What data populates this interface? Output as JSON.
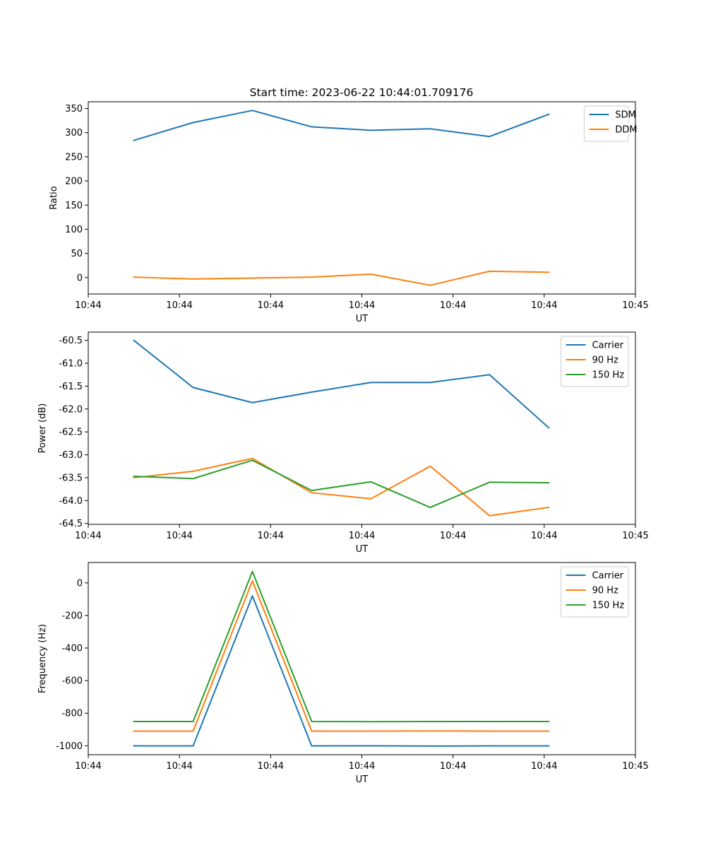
{
  "figure": {
    "title": "Start time: 2023-06-22 10:44:01.709176"
  },
  "colors": {
    "blue": "#1f77b4",
    "orange": "#ff7f0e",
    "green": "#2ca02c"
  },
  "chart_data": [
    {
      "type": "line",
      "title": "Start time: 2023-06-22 10:44:01.709176",
      "xlabel": "UT",
      "ylabel": "Ratio",
      "x": [
        0.5,
        1.15,
        1.8,
        2.45,
        3.1,
        3.75,
        4.4,
        5.05
      ],
      "xlim": [
        0,
        6
      ],
      "xticks": [
        0.0,
        1.0,
        2.0,
        3.0,
        4.0,
        5.0,
        6.0
      ],
      "xtick_labels": [
        "10:44",
        "10:44",
        "10:44",
        "10:44",
        "10:44",
        "10:44",
        "10:45"
      ],
      "ylim": [
        -34,
        364
      ],
      "yticks": [
        0,
        50,
        100,
        150,
        200,
        250,
        300,
        350
      ],
      "ytick_labels": [
        "0",
        "50",
        "100",
        "150",
        "200",
        "250",
        "300",
        "350"
      ],
      "legend": "top-right",
      "series": [
        {
          "name": "SDM",
          "color": "#1f77b4",
          "values": [
            284,
            321,
            346,
            312,
            305,
            308,
            292,
            338
          ]
        },
        {
          "name": "DDM",
          "color": "#ff7f0e",
          "values": [
            1,
            -3,
            -1,
            1,
            7,
            -16,
            13,
            11
          ]
        }
      ]
    },
    {
      "type": "line",
      "xlabel": "UT",
      "ylabel": "Power (dB)",
      "x": [
        0.5,
        1.15,
        1.8,
        2.45,
        3.1,
        3.75,
        4.4,
        5.05
      ],
      "xlim": [
        0,
        6
      ],
      "xticks": [
        0.0,
        1.0,
        2.0,
        3.0,
        4.0,
        5.0,
        6.0
      ],
      "xtick_labels": [
        "10:44",
        "10:44",
        "10:44",
        "10:44",
        "10:44",
        "10:44",
        "10:45"
      ],
      "ylim": [
        -64.52,
        -60.32
      ],
      "yticks": [
        -64.5,
        -64.0,
        -63.5,
        -63.0,
        -62.5,
        -62.0,
        -61.5,
        -61.0,
        -60.5
      ],
      "ytick_labels": [
        "-64.5",
        "-64.0",
        "-63.5",
        "-63.0",
        "-62.5",
        "-62.0",
        "-61.5",
        "-61.0",
        "-60.5"
      ],
      "legend": "top-right",
      "series": [
        {
          "name": "Carrier",
          "color": "#1f77b4",
          "values": [
            -60.5,
            -61.53,
            -61.86,
            -61.63,
            -61.42,
            -61.42,
            -61.25,
            -62.41
          ]
        },
        {
          "name": "90 Hz",
          "color": "#ff7f0e",
          "values": [
            -63.5,
            -63.36,
            -63.08,
            -63.83,
            -63.96,
            -63.25,
            -64.33,
            -64.15
          ]
        },
        {
          "name": "150 Hz",
          "color": "#2ca02c",
          "values": [
            -63.47,
            -63.52,
            -63.12,
            -63.78,
            -63.59,
            -64.15,
            -63.6,
            -63.61
          ]
        }
      ]
    },
    {
      "type": "line",
      "xlabel": "UT",
      "ylabel": "Frequency (Hz)",
      "x": [
        0.5,
        1.15,
        1.8,
        2.45,
        3.1,
        3.75,
        4.4,
        5.05
      ],
      "xlim": [
        0,
        6
      ],
      "xticks": [
        0.0,
        1.0,
        2.0,
        3.0,
        4.0,
        5.0,
        6.0
      ],
      "xtick_labels": [
        "10:44",
        "10:44",
        "10:44",
        "10:44",
        "10:44",
        "10:44",
        "10:45"
      ],
      "ylim": [
        -1055,
        125
      ],
      "yticks": [
        -1000,
        -800,
        -600,
        -400,
        -200,
        0
      ],
      "ytick_labels": [
        "-1000",
        "-800",
        "-600",
        "-400",
        "-200",
        "0"
      ],
      "legend": "top-right",
      "series": [
        {
          "name": "Carrier",
          "color": "#1f77b4",
          "values": [
            -1001,
            -1001,
            -80,
            -1001,
            -1000,
            -1002,
            -1001,
            -1001
          ]
        },
        {
          "name": "90 Hz",
          "color": "#ff7f0e",
          "values": [
            -910,
            -910,
            12,
            -910,
            -910,
            -909,
            -910,
            -910
          ]
        },
        {
          "name": "150 Hz",
          "color": "#2ca02c",
          "values": [
            -851,
            -851,
            70,
            -851,
            -852,
            -851,
            -851,
            -851
          ]
        }
      ]
    }
  ]
}
